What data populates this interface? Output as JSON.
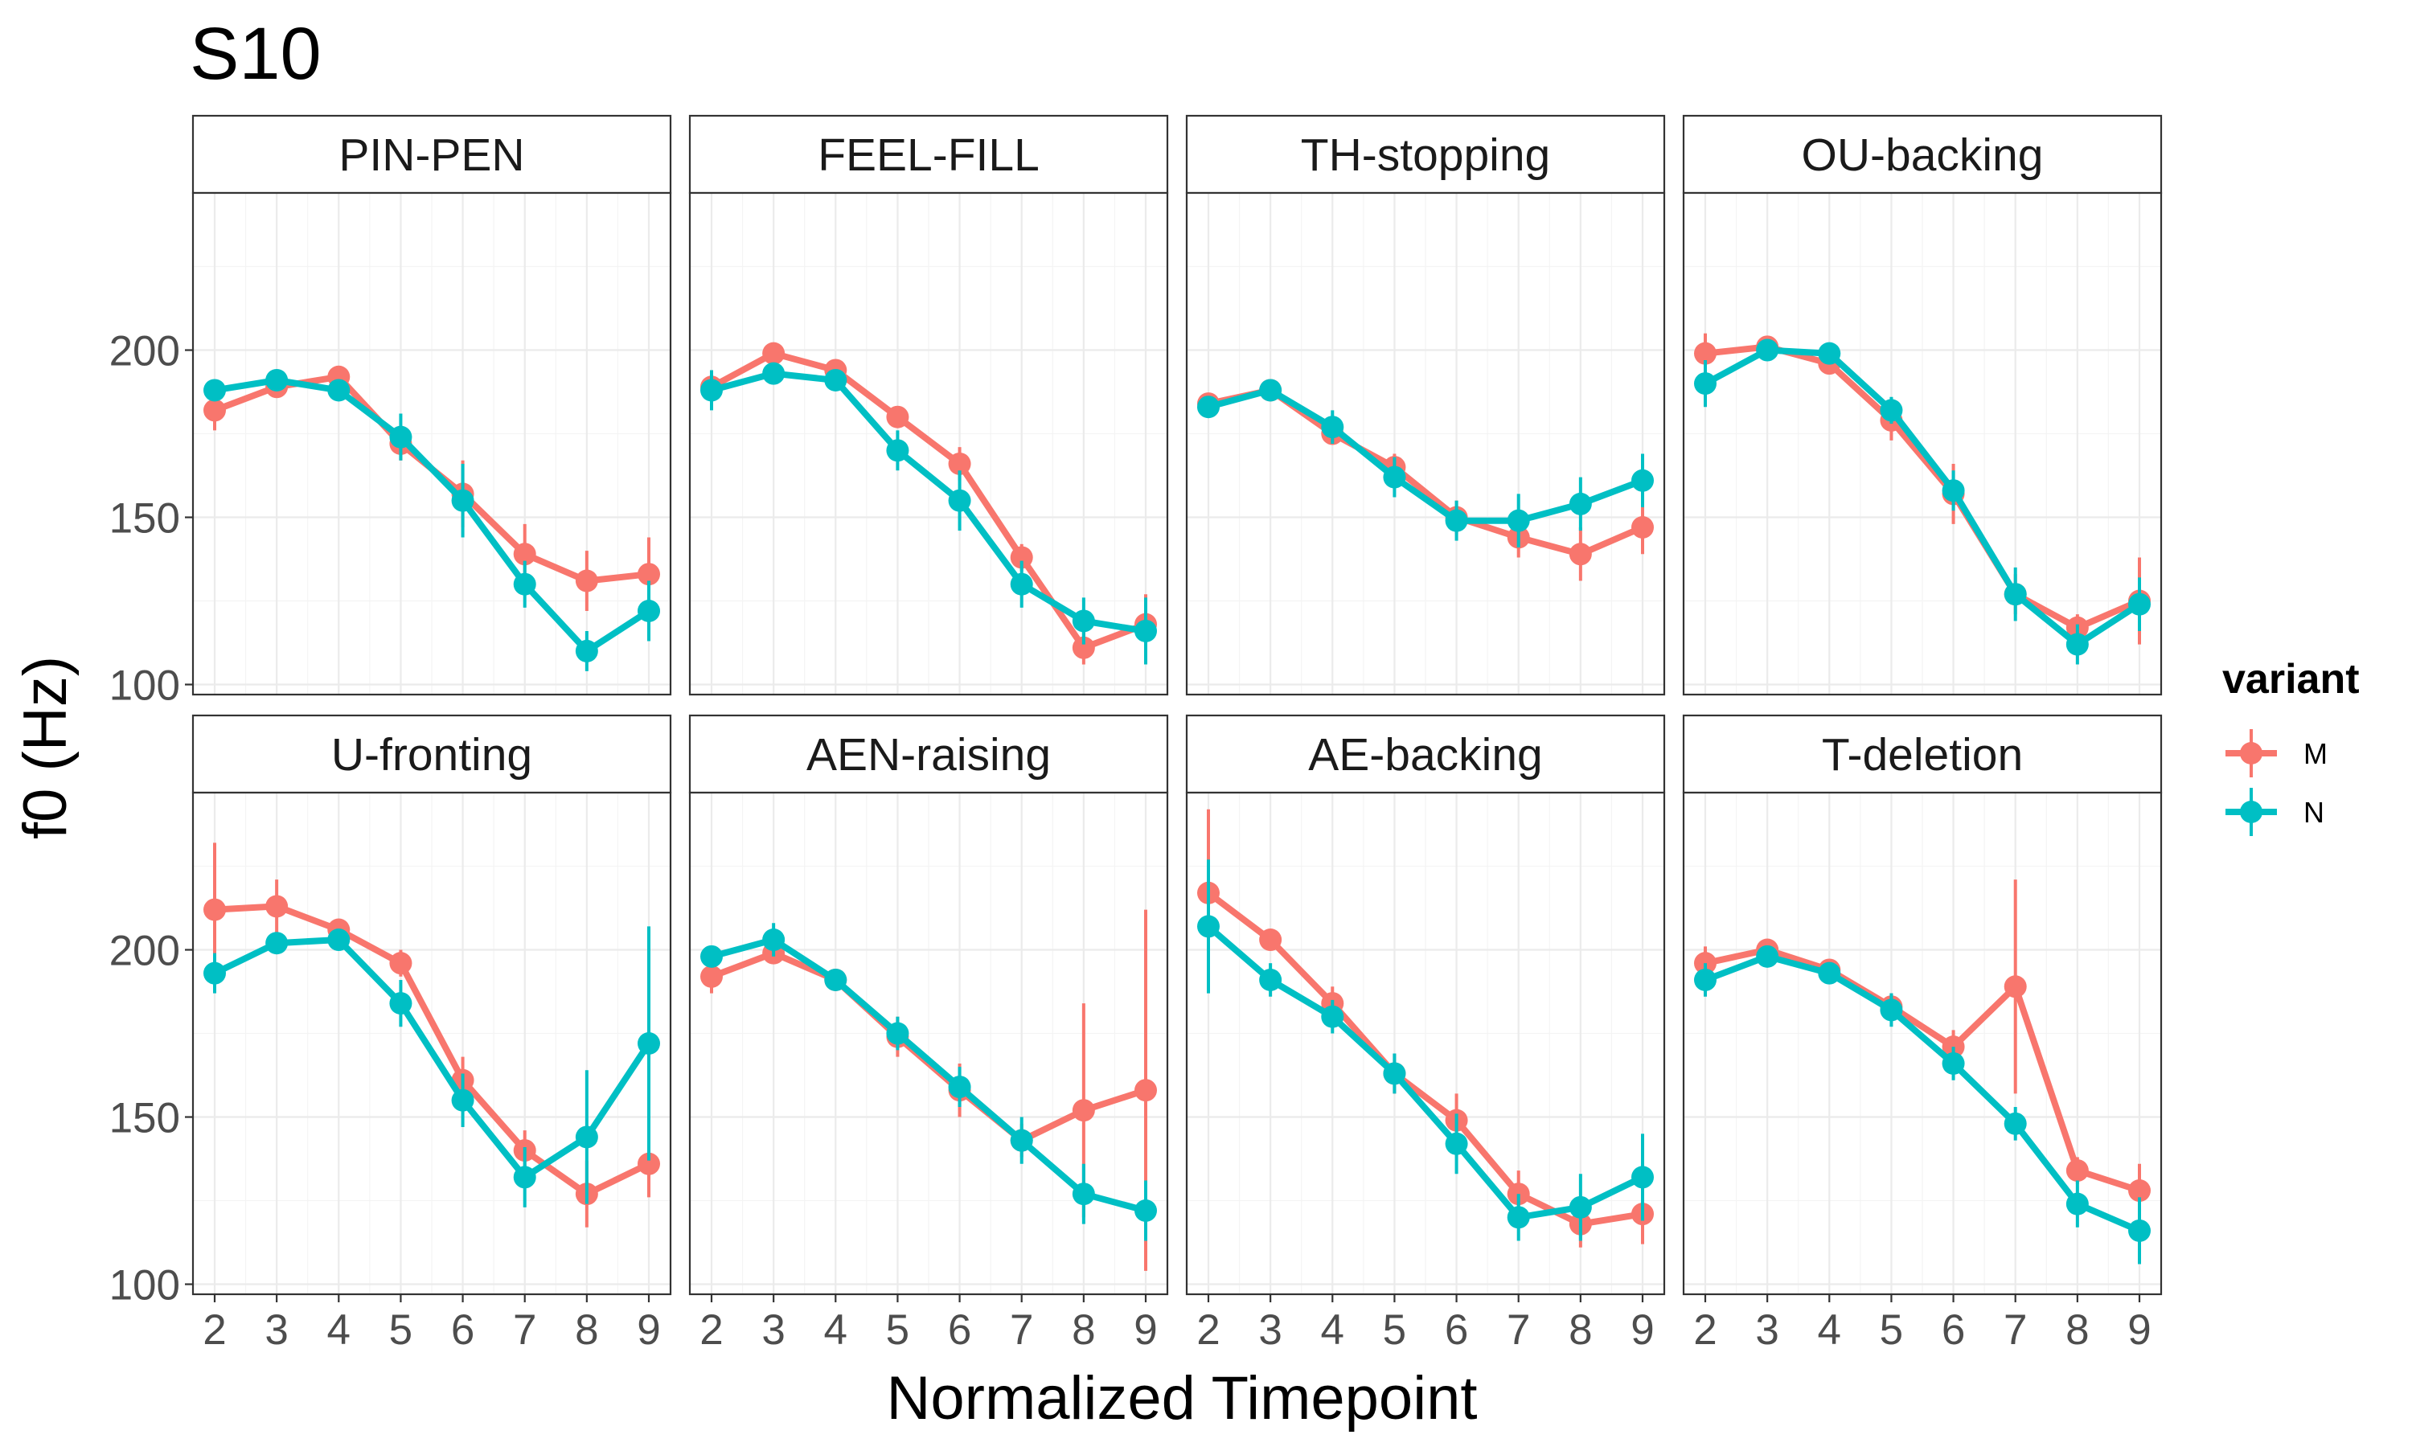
{
  "chart_data": {
    "type": "line",
    "title": "S10",
    "xlabel": "Normalized Timepoint",
    "ylabel": "f0 (Hz)",
    "x": [
      2,
      3,
      4,
      5,
      6,
      7,
      8,
      9
    ],
    "ylim": [
      97,
      247
    ],
    "y_ticks": [
      100,
      150,
      200
    ],
    "legend": {
      "title": "variant",
      "placement": "right",
      "entries": [
        {
          "label": "M",
          "color": "#F8766D"
        },
        {
          "label": "N",
          "color": "#00BFC4"
        }
      ]
    },
    "panels": [
      {
        "label": "PIN-PEN",
        "series": [
          {
            "name": "M",
            "values": [
              182,
              189,
              192,
              172,
              157,
              139,
              131,
              133
            ],
            "err": [
              6,
              3,
              3,
              5,
              10,
              9,
              9,
              11
            ]
          },
          {
            "name": "N",
            "values": [
              188,
              191,
              188,
              174,
              155,
              130,
              110,
              122
            ],
            "err": [
              3,
              3,
              3,
              7,
              11,
              7,
              6,
              9
            ]
          }
        ]
      },
      {
        "label": "FEEL-FILL",
        "series": [
          {
            "name": "M",
            "values": [
              189,
              199,
              194,
              180,
              166,
              138,
              111,
              118
            ],
            "err": [
              5,
              3,
              3,
              3,
              5,
              4,
              5,
              9
            ]
          },
          {
            "name": "N",
            "values": [
              188,
              193,
              191,
              170,
              155,
              130,
              119,
              116
            ],
            "err": [
              6,
              3,
              3,
              6,
              9,
              7,
              7,
              10
            ]
          }
        ]
      },
      {
        "label": "TH-stopping",
        "series": [
          {
            "name": "M",
            "values": [
              184,
              188,
              175,
              165,
              150,
              144,
              139,
              147
            ],
            "err": [
              3,
              3,
              3,
              4,
              5,
              6,
              8,
              8
            ]
          },
          {
            "name": "N",
            "values": [
              183,
              188,
              177,
              162,
              149,
              149,
              154,
              161
            ],
            "err": [
              3,
              3,
              5,
              6,
              6,
              8,
              8,
              8
            ]
          }
        ]
      },
      {
        "label": "OU-backing",
        "series": [
          {
            "name": "M",
            "values": [
              199,
              201,
              196,
              179,
              157,
              127,
              117,
              125
            ],
            "err": [
              6,
              3,
              3,
              6,
              9,
              6,
              4,
              13
            ]
          },
          {
            "name": "N",
            "values": [
              190,
              200,
              199,
              182,
              158,
              127,
              112,
              124
            ],
            "err": [
              7,
              3,
              3,
              4,
              6,
              8,
              6,
              8
            ]
          }
        ]
      },
      {
        "label": "U-fronting",
        "series": [
          {
            "name": "M",
            "values": [
              212,
              213,
              206,
              196,
              161,
              140,
              127,
              136
            ],
            "err": [
              20,
              8,
              3,
              4,
              7,
              6,
              10,
              10
            ]
          },
          {
            "name": "N",
            "values": [
              193,
              202,
              203,
              184,
              155,
              132,
              144,
              172
            ],
            "err": [
              6,
              3,
              3,
              7,
              8,
              9,
              20,
              35
            ]
          }
        ]
      },
      {
        "label": "AEN-raising",
        "series": [
          {
            "name": "M",
            "values": [
              192,
              199,
              191,
              174,
              158,
              143,
              152,
              158
            ],
            "err": [
              5,
              3,
              3,
              6,
              8,
              5,
              32,
              54
            ]
          },
          {
            "name": "N",
            "values": [
              198,
              203,
              191,
              175,
              159,
              143,
              127,
              122
            ],
            "err": [
              3,
              5,
              3,
              5,
              6,
              7,
              9,
              9
            ]
          }
        ]
      },
      {
        "label": "AE-backing",
        "series": [
          {
            "name": "M",
            "values": [
              217,
              203,
              184,
              163,
              149,
              127,
              118,
              121
            ],
            "err": [
              25,
              3,
              5,
              6,
              8,
              7,
              7,
              9
            ]
          },
          {
            "name": "N",
            "values": [
              207,
              191,
              180,
              163,
              142,
              120,
              123,
              132
            ],
            "err": [
              20,
              5,
              5,
              6,
              9,
              7,
              10,
              13
            ]
          }
        ]
      },
      {
        "label": "T-deletion",
        "series": [
          {
            "name": "M",
            "values": [
              196,
              200,
              194,
              183,
              171,
              189,
              134,
              128
            ],
            "err": [
              5,
              3,
              3,
              4,
              5,
              32,
              4,
              8
            ]
          },
          {
            "name": "N",
            "values": [
              191,
              198,
              193,
              182,
              166,
              148,
              124,
              116
            ],
            "err": [
              5,
              3,
              3,
              5,
              5,
              5,
              7,
              10
            ]
          }
        ]
      }
    ]
  }
}
